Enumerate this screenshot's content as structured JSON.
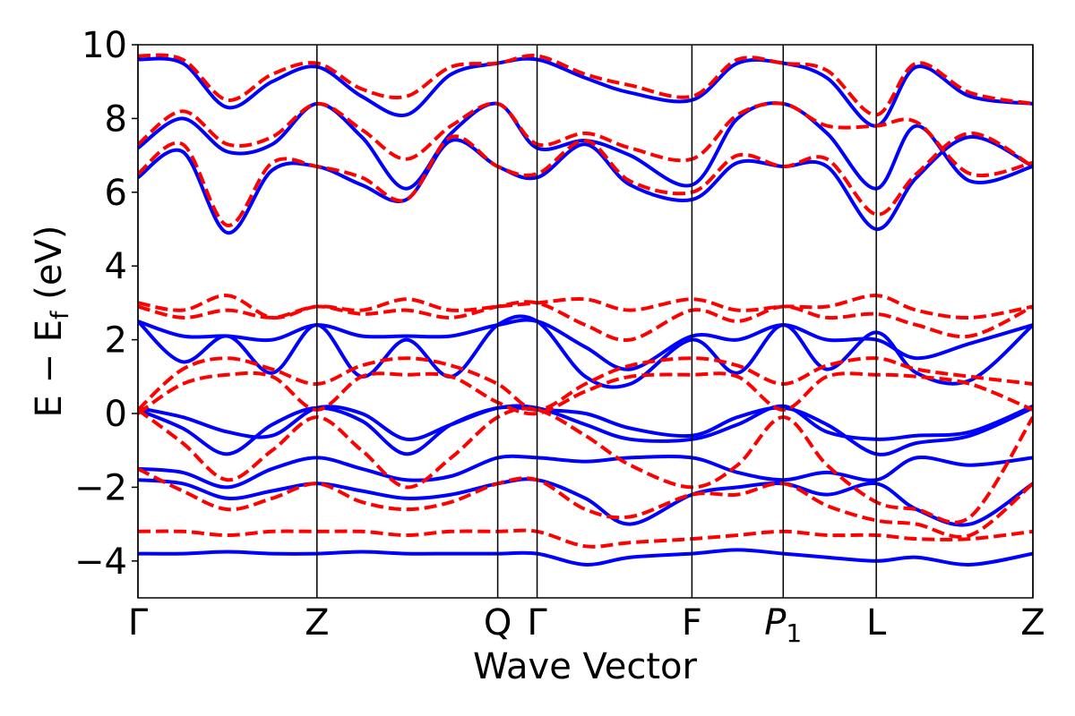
{
  "chart_data": {
    "type": "line",
    "title": "",
    "xlabel": "Wave Vector",
    "ylabel": "E − E",
    "ylabel_subscript": "f",
    "ylabel_unit": " (eV)",
    "ylim": [
      -5,
      10
    ],
    "xlim": [
      0,
      1
    ],
    "yticks": [
      {
        "value": -4,
        "label": "−4"
      },
      {
        "value": -2,
        "label": "−2"
      },
      {
        "value": 0,
        "label": "0"
      },
      {
        "value": 2,
        "label": "2"
      },
      {
        "value": 4,
        "label": "4"
      },
      {
        "value": 6,
        "label": "6"
      },
      {
        "value": 8,
        "label": "8"
      },
      {
        "value": 10,
        "label": "10"
      }
    ],
    "kpoints": [
      {
        "pos": 0.0,
        "label": "Γ"
      },
      {
        "pos": 0.2,
        "label": "Z"
      },
      {
        "pos": 0.402,
        "label": "Q"
      },
      {
        "pos": 0.446,
        "label": "Γ"
      },
      {
        "pos": 0.619,
        "label": "F"
      },
      {
        "pos": 0.721,
        "label": "P",
        "sub": "1"
      },
      {
        "pos": 0.825,
        "label": "L"
      },
      {
        "pos": 1.0,
        "label": "Z"
      }
    ],
    "grid": false,
    "legend": "none",
    "series": [
      {
        "style": "solid",
        "color": "#0000ff",
        "bands": [
          {
            "x": [
              0,
              0.05,
              0.1,
              0.15,
              0.2,
              0.25,
              0.3,
              0.35,
              0.402,
              0.446,
              0.5,
              0.55,
              0.619,
              0.67,
              0.721,
              0.77,
              0.825,
              0.87,
              0.93,
              1.0
            ],
            "y": [
              -3.8,
              -3.8,
              -3.75,
              -3.8,
              -3.8,
              -3.75,
              -3.8,
              -3.8,
              -3.8,
              -3.8,
              -4.1,
              -3.9,
              -3.8,
              -3.7,
              -3.8,
              -3.9,
              -4.0,
              -3.9,
              -4.1,
              -3.8
            ]
          },
          {
            "x": [
              0,
              0.05,
              0.1,
              0.15,
              0.2,
              0.25,
              0.3,
              0.35,
              0.402,
              0.446,
              0.5,
              0.55,
              0.619,
              0.67,
              0.721,
              0.77,
              0.825,
              0.87,
              0.93,
              1.0
            ],
            "y": [
              -1.8,
              -1.9,
              -2.3,
              -2.1,
              -1.9,
              -2.1,
              -2.3,
              -2.2,
              -1.9,
              -1.8,
              -2.3,
              -3.0,
              -2.2,
              -2.0,
              -1.9,
              -2.2,
              -1.9,
              -2.6,
              -3.0,
              -1.9
            ]
          },
          {
            "x": [
              0,
              0.05,
              0.1,
              0.15,
              0.2,
              0.25,
              0.3,
              0.35,
              0.402,
              0.446,
              0.5,
              0.55,
              0.619,
              0.67,
              0.721,
              0.77,
              0.825,
              0.87,
              0.93,
              1.0
            ],
            "y": [
              -1.5,
              -1.6,
              -2.0,
              -1.5,
              -1.2,
              -1.5,
              -1.8,
              -1.7,
              -1.2,
              -1.2,
              -1.3,
              -1.2,
              -1.2,
              -1.6,
              -1.8,
              -1.6,
              -1.8,
              -1.2,
              -1.4,
              -1.2
            ]
          },
          {
            "x": [
              0,
              0.05,
              0.1,
              0.15,
              0.2,
              0.25,
              0.3,
              0.35,
              0.402,
              0.446,
              0.5,
              0.55,
              0.619,
              0.67,
              0.721,
              0.77,
              0.825,
              0.87,
              0.93,
              1.0
            ],
            "y": [
              0.1,
              -0.4,
              -1.1,
              -0.3,
              0.15,
              -0.2,
              -1.1,
              -0.3,
              0.15,
              0.1,
              0.0,
              -0.4,
              -0.6,
              -0.1,
              0.15,
              -0.3,
              -1.1,
              -0.8,
              -0.6,
              0.15
            ]
          },
          {
            "x": [
              0,
              0.05,
              0.1,
              0.15,
              0.2,
              0.25,
              0.3,
              0.35,
              0.402,
              0.446,
              0.5,
              0.55,
              0.619,
              0.67,
              0.721,
              0.77,
              0.825,
              0.87,
              0.93,
              1.0
            ],
            "y": [
              0.15,
              -0.1,
              -0.5,
              -0.6,
              0.15,
              0.0,
              -0.7,
              -0.3,
              0.15,
              0.15,
              -0.3,
              -0.7,
              -0.7,
              -0.3,
              0.2,
              -0.5,
              -0.7,
              -0.6,
              -0.5,
              0.2
            ]
          },
          {
            "x": [
              0,
              0.05,
              0.1,
              0.15,
              0.2,
              0.25,
              0.3,
              0.35,
              0.402,
              0.446,
              0.5,
              0.55,
              0.619,
              0.67,
              0.721,
              0.77,
              0.825,
              0.87,
              0.93,
              1.0
            ],
            "y": [
              2.5,
              2.1,
              2.1,
              2.0,
              2.4,
              2.1,
              2.1,
              2.1,
              2.4,
              2.5,
              1.8,
              1.2,
              2.1,
              2.0,
              2.4,
              2.0,
              2.0,
              1.5,
              1.9,
              2.4
            ]
          },
          {
            "x": [
              0,
              0.05,
              0.1,
              0.15,
              0.2,
              0.25,
              0.3,
              0.35,
              0.402,
              0.446,
              0.5,
              0.55,
              0.619,
              0.67,
              0.721,
              0.77,
              0.825,
              0.87,
              0.93,
              1.0
            ],
            "y": [
              2.5,
              1.4,
              2.1,
              1.1,
              2.4,
              1.0,
              2.0,
              1.0,
              2.4,
              2.5,
              1.0,
              0.8,
              2.0,
              1.1,
              2.4,
              1.2,
              2.2,
              1.1,
              0.9,
              2.4
            ]
          },
          {
            "x": [
              0,
              0.05,
              0.1,
              0.15,
              0.2,
              0.25,
              0.3,
              0.35,
              0.402,
              0.446,
              0.5,
              0.55,
              0.619,
              0.67,
              0.721,
              0.77,
              0.825,
              0.87,
              0.93,
              1.0
            ],
            "y": [
              6.4,
              7.1,
              4.9,
              6.6,
              6.7,
              6.2,
              5.8,
              7.4,
              6.7,
              6.4,
              7.3,
              6.2,
              5.8,
              6.8,
              6.7,
              6.7,
              5.0,
              6.4,
              7.5,
              6.7
            ]
          },
          {
            "x": [
              0,
              0.05,
              0.1,
              0.15,
              0.2,
              0.25,
              0.3,
              0.35,
              0.402,
              0.446,
              0.5,
              0.55,
              0.619,
              0.67,
              0.721,
              0.77,
              0.825,
              0.87,
              0.93,
              1.0
            ],
            "y": [
              7.2,
              8.0,
              7.1,
              7.3,
              8.4,
              7.5,
              6.1,
              7.6,
              8.4,
              7.2,
              7.4,
              7.0,
              6.2,
              8.0,
              8.4,
              7.6,
              6.1,
              7.8,
              6.3,
              6.7
            ]
          },
          {
            "x": [
              0,
              0.05,
              0.1,
              0.15,
              0.2,
              0.25,
              0.3,
              0.35,
              0.402,
              0.446,
              0.5,
              0.55,
              0.619,
              0.67,
              0.721,
              0.77,
              0.825,
              0.87,
              0.93,
              1.0
            ],
            "y": [
              9.6,
              9.5,
              8.3,
              9.0,
              9.4,
              8.6,
              8.1,
              9.2,
              9.5,
              9.6,
              9.1,
              8.7,
              8.5,
              9.5,
              9.5,
              9.1,
              7.8,
              9.4,
              8.6,
              8.4
            ]
          }
        ]
      },
      {
        "style": "dashed",
        "color": "#ff0000",
        "bands": [
          {
            "x": [
              0,
              0.05,
              0.1,
              0.15,
              0.2,
              0.25,
              0.3,
              0.35,
              0.402,
              0.446,
              0.5,
              0.55,
              0.619,
              0.67,
              0.721,
              0.77,
              0.825,
              0.87,
              0.93,
              1.0
            ],
            "y": [
              -3.2,
              -3.2,
              -3.3,
              -3.2,
              -3.2,
              -3.2,
              -3.3,
              -3.2,
              -3.2,
              -3.2,
              -3.6,
              -3.5,
              -3.4,
              -3.3,
              -3.2,
              -3.3,
              -3.3,
              -3.4,
              -3.4,
              -3.2
            ]
          },
          {
            "x": [
              0,
              0.05,
              0.1,
              0.15,
              0.2,
              0.25,
              0.3,
              0.35,
              0.402,
              0.446,
              0.5,
              0.55,
              0.619,
              0.67,
              0.721,
              0.77,
              0.825,
              0.87,
              0.93,
              1.0
            ],
            "y": [
              -1.5,
              -2.1,
              -2.6,
              -2.3,
              -1.9,
              -2.4,
              -2.6,
              -2.4,
              -1.9,
              -1.8,
              -2.6,
              -2.8,
              -2.2,
              -2.2,
              -1.9,
              -2.5,
              -2.9,
              -3.0,
              -3.3,
              -1.9
            ]
          },
          {
            "x": [
              0,
              0.05,
              0.1,
              0.15,
              0.2,
              0.25,
              0.3,
              0.35,
              0.402,
              0.446,
              0.5,
              0.55,
              0.619,
              0.67,
              0.721,
              0.77,
              0.825,
              0.87,
              0.93,
              1.0
            ],
            "y": [
              0.1,
              -0.8,
              -1.8,
              -1.0,
              -0.1,
              -1.0,
              -2.0,
              -1.2,
              -0.1,
              0.1,
              -0.6,
              -1.4,
              -2.0,
              -1.4,
              -0.1,
              -1.4,
              -2.4,
              -2.6,
              -2.8,
              -0.1
            ]
          },
          {
            "x": [
              0,
              0.05,
              0.1,
              0.15,
              0.2,
              0.25,
              0.3,
              0.35,
              0.402,
              0.446,
              0.5,
              0.55,
              0.619,
              0.67,
              0.721,
              0.77,
              0.825,
              0.87,
              0.93,
              1.0
            ],
            "y": [
              0.1,
              1.2,
              1.5,
              1.2,
              0.8,
              1.3,
              1.5,
              1.3,
              0.8,
              0.1,
              0.8,
              1.3,
              1.5,
              1.3,
              0.8,
              1.3,
              1.5,
              1.2,
              1.0,
              0.8
            ]
          },
          {
            "x": [
              0,
              0.05,
              0.1,
              0.15,
              0.2,
              0.25,
              0.3,
              0.35,
              0.402,
              0.446,
              0.5,
              0.55,
              0.619,
              0.67,
              0.721,
              0.77,
              0.825,
              0.87,
              0.93,
              1.0
            ],
            "y": [
              0.0,
              0.8,
              1.05,
              1.0,
              0.1,
              1.0,
              1.05,
              1.0,
              0.3,
              0.0,
              0.6,
              1.0,
              1.05,
              1.0,
              0.1,
              1.0,
              1.05,
              1.0,
              0.8,
              0.1
            ]
          },
          {
            "x": [
              0,
              0.05,
              0.1,
              0.15,
              0.2,
              0.25,
              0.3,
              0.35,
              0.402,
              0.446,
              0.5,
              0.55,
              0.619,
              0.67,
              0.721,
              0.77,
              0.825,
              0.87,
              0.93,
              1.0
            ],
            "y": [
              2.9,
              2.6,
              2.8,
              2.6,
              2.9,
              2.7,
              2.8,
              2.6,
              2.9,
              3.0,
              2.4,
              2.0,
              2.8,
              2.5,
              2.9,
              2.6,
              2.7,
              2.4,
              2.1,
              2.9
            ]
          },
          {
            "x": [
              0,
              0.05,
              0.1,
              0.15,
              0.2,
              0.25,
              0.3,
              0.35,
              0.402,
              0.446,
              0.5,
              0.55,
              0.619,
              0.67,
              0.721,
              0.77,
              0.825,
              0.87,
              0.93,
              1.0
            ],
            "y": [
              3.0,
              2.8,
              3.2,
              2.6,
              2.9,
              2.8,
              3.1,
              2.8,
              2.9,
              3.0,
              3.1,
              2.8,
              3.1,
              2.8,
              2.9,
              2.9,
              3.2,
              2.8,
              2.6,
              2.9
            ]
          },
          {
            "x": [
              0,
              0.05,
              0.1,
              0.15,
              0.2,
              0.25,
              0.3,
              0.35,
              0.402,
              0.446,
              0.5,
              0.55,
              0.619,
              0.67,
              0.721,
              0.77,
              0.825,
              0.87,
              0.93,
              1.0
            ],
            "y": [
              6.5,
              7.3,
              5.1,
              6.8,
              6.7,
              6.4,
              5.8,
              7.5,
              6.7,
              6.5,
              7.4,
              6.3,
              6.0,
              7.0,
              6.7,
              6.9,
              5.4,
              6.5,
              7.6,
              6.7
            ]
          },
          {
            "x": [
              0,
              0.05,
              0.1,
              0.15,
              0.2,
              0.25,
              0.3,
              0.35,
              0.402,
              0.446,
              0.5,
              0.55,
              0.619,
              0.67,
              0.721,
              0.77,
              0.825,
              0.87,
              0.93,
              1.0
            ],
            "y": [
              7.3,
              8.2,
              7.3,
              7.5,
              8.4,
              7.7,
              6.9,
              7.8,
              8.4,
              7.3,
              7.6,
              7.2,
              6.9,
              8.1,
              8.4,
              7.8,
              7.8,
              7.9,
              6.5,
              6.8
            ]
          },
          {
            "x": [
              0,
              0.05,
              0.1,
              0.15,
              0.2,
              0.25,
              0.3,
              0.35,
              0.402,
              0.446,
              0.5,
              0.55,
              0.619,
              0.67,
              0.721,
              0.77,
              0.825,
              0.87,
              0.93,
              1.0
            ],
            "y": [
              9.7,
              9.6,
              8.5,
              9.2,
              9.5,
              8.8,
              8.6,
              9.4,
              9.5,
              9.7,
              9.2,
              8.9,
              8.6,
              9.6,
              9.5,
              9.3,
              8.1,
              9.5,
              8.7,
              8.4
            ]
          }
        ]
      }
    ]
  }
}
